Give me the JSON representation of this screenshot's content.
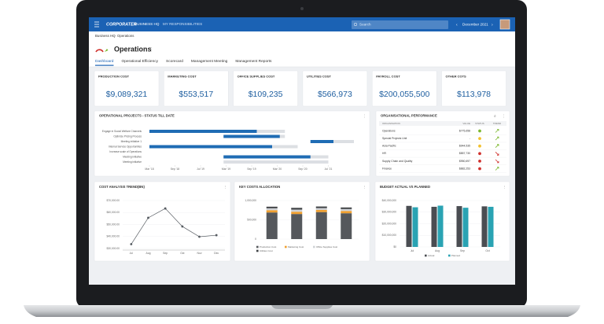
{
  "nav": {
    "logo": "CORPORATER",
    "links": [
      "BUSINESS HQ",
      "MY RESPONSIBILITIES"
    ],
    "search": "Search",
    "period": "December 2021"
  },
  "breadcrumb": [
    "Business HQ",
    "Operations"
  ],
  "title": "Operations",
  "tabs": [
    "Dashboard",
    "Operational Efficiency",
    "Scorecard",
    "Management Meeting",
    "Management Reports"
  ],
  "kpis": [
    {
      "label": "PRODUCTION COST",
      "value": "$9,089,321"
    },
    {
      "label": "MARKETING COST",
      "value": "$553,517"
    },
    {
      "label": "OFFICE SUPPLIES COST",
      "value": "$109,235"
    },
    {
      "label": "UTILITIES COST",
      "value": "$566,973"
    },
    {
      "label": "PAYROLL COST",
      "value": "$200,055,500"
    },
    {
      "label": "OTHER COTS",
      "value": "$113,978"
    }
  ],
  "org_performance": {
    "title": "ORGANISATIONAL PERFORMANCE",
    "columns": [
      "ORGANISATION",
      "VALUE",
      "STATUS",
      "TREND"
    ],
    "status_colors": {
      "green": "#7cb82f",
      "yellow": "#f2c12e",
      "red": "#d0312d"
    },
    "rows": [
      {
        "name": "Operations",
        "value": "$775,658",
        "status": "green",
        "trend": "up"
      },
      {
        "name": "Special Projects Unit",
        "value": "-",
        "status": "yellow",
        "trend": "up"
      },
      {
        "name": "Asia Pacific",
        "value": "$944,535",
        "status": "yellow",
        "trend": "up"
      },
      {
        "name": "HR",
        "value": "$857,730",
        "status": "red",
        "trend": "down"
      },
      {
        "name": "Supply Chain and Quality",
        "value": "$950,697",
        "status": "red",
        "trend": "down"
      },
      {
        "name": "Finance",
        "value": "$882,253",
        "status": "red",
        "trend": "up"
      }
    ]
  },
  "chart_data": [
    {
      "type": "gantt",
      "title": "OPERATIONAL PROJECTS - STATUS TILL DATE",
      "color": "#1f6cb4",
      "track_color": "#dcdfe3",
      "xlim": [
        0,
        8
      ],
      "xticks": [
        {
          "value": 0,
          "label": "Mar '18"
        },
        {
          "value": 1,
          "label": "Sep '18"
        },
        {
          "value": 2,
          "label": "Jul '19"
        },
        {
          "value": 3,
          "label": "Mar '19"
        },
        {
          "value": 4,
          "label": "Sep '19"
        },
        {
          "value": 5,
          "label": "Mar '20"
        },
        {
          "value": 6,
          "label": "Sep '20"
        },
        {
          "value": 7,
          "label": "Jul '21"
        }
      ],
      "rows": [
        {
          "label": "Engage in Social Welfare Channels",
          "start": 0,
          "end": 5.3,
          "done": 4.2
        },
        {
          "label": "Optimize Pricing Process",
          "start": 2.9,
          "end": 5.3,
          "done": 5.1
        },
        {
          "label": "Meeting initiative 1",
          "start": 6.3,
          "end": 8,
          "done": 7.2
        },
        {
          "label": "Internal Service Opportunities",
          "start": 0,
          "end": 5.8,
          "done": 4.8
        },
        {
          "label": "Increase scale of Operations",
          "start": null,
          "end": null,
          "done": null
        },
        {
          "label": "Meeting initiative",
          "start": 2.9,
          "end": 7,
          "done": 6.3
        },
        {
          "label": "Meeting initiative",
          "start": 2.9,
          "end": 7,
          "done": null
        }
      ]
    },
    {
      "type": "line",
      "title": "COST ANALYSIS TREND(BN)",
      "color": "#555a60",
      "categories": [
        "Jul",
        "Aug",
        "Sep",
        "Oct",
        "Nov",
        "Dec"
      ],
      "values": [
        33600,
        55600,
        63400,
        48400,
        39800,
        41100
      ],
      "ylim": [
        30000,
        70000
      ],
      "yticks": [
        {
          "value": 30000,
          "label": "$30,000.00"
        },
        {
          "value": 40000,
          "label": "$40,000.00"
        },
        {
          "value": 50000,
          "label": "$50,000.00"
        },
        {
          "value": 60000,
          "label": "$60,000.00"
        },
        {
          "value": 70000,
          "label": "$70,000.00"
        }
      ]
    },
    {
      "type": "stacked_bar",
      "title": "KEY COSTS ALLOCATION",
      "categories": [
        null,
        null,
        null,
        null
      ],
      "series": [
        {
          "name": "Production Cost",
          "color": "#55585c",
          "values": [
            690000,
            650000,
            700000,
            670000
          ]
        },
        {
          "name": "Marketing Cost",
          "color": "#f0a030",
          "values": [
            60000,
            60000,
            55000,
            60000
          ]
        },
        {
          "name": "Office Supplies Cost",
          "color": "#cfd2d6",
          "values": [
            50000,
            55000,
            50000,
            50000
          ]
        },
        {
          "name": "Utilities Cost",
          "color": "#3d4043",
          "values": [
            40000,
            45000,
            40000,
            40000
          ]
        }
      ],
      "ylim": [
        0,
        1000000
      ],
      "yticks": [
        0,
        {
          "value": 500000,
          "label": "500,000"
        },
        {
          "value": 1000000,
          "label": "1,000,000"
        }
      ]
    },
    {
      "type": "grouped_bar",
      "title": "BUDGET ACTUAL VS PLANNED",
      "categories": [
        "Jul",
        "Aug",
        "Sep",
        "Oct"
      ],
      "series": [
        {
          "name": "Actual",
          "color": "#4a4d52",
          "values": [
            35400000,
            34600000,
            35200000,
            35000000
          ]
        },
        {
          "name": "Planned",
          "color": "#2aa3b3",
          "values": [
            34200000,
            35600000,
            33800000,
            34600000
          ]
        }
      ],
      "ylim": [
        0,
        40000000
      ],
      "yticks": [
        {
          "value": 0,
          "label": "$0"
        },
        {
          "value": 10000000,
          "label": "$10,000,000"
        },
        {
          "value": 20000000,
          "label": "$20,000,000"
        },
        {
          "value": 30000000,
          "label": "$30,000,000"
        },
        {
          "value": 40000000,
          "label": "$40,000,000"
        }
      ]
    }
  ]
}
